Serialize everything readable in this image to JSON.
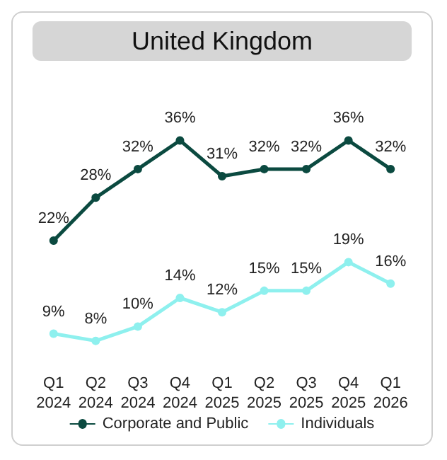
{
  "chart_data": {
    "type": "line",
    "title": "United Kingdom",
    "categories": [
      "Q1\n2024",
      "Q2\n2024",
      "Q3\n2024",
      "Q4\n2024",
      "Q1\n2025",
      "Q2\n2025",
      "Q3\n2025",
      "Q4\n2025",
      "Q1\n2026"
    ],
    "series": [
      {
        "name": "Corporate and Public",
        "color": "#0b4a40",
        "values": [
          22,
          28,
          32,
          36,
          31,
          32,
          32,
          36,
          32
        ],
        "value_labels": [
          "22%",
          "28%",
          "32%",
          "36%",
          "31%",
          "32%",
          "32%",
          "36%",
          "32%"
        ]
      },
      {
        "name": "Individuals",
        "color": "#8ef0ee",
        "values": [
          9,
          8,
          10,
          14,
          12,
          15,
          15,
          19,
          16
        ],
        "value_labels": [
          "9%",
          "8%",
          "10%",
          "14%",
          "12%",
          "15%",
          "15%",
          "19%",
          "16%"
        ]
      }
    ],
    "marker": "circle",
    "legend": "bottom",
    "grid": false
  }
}
